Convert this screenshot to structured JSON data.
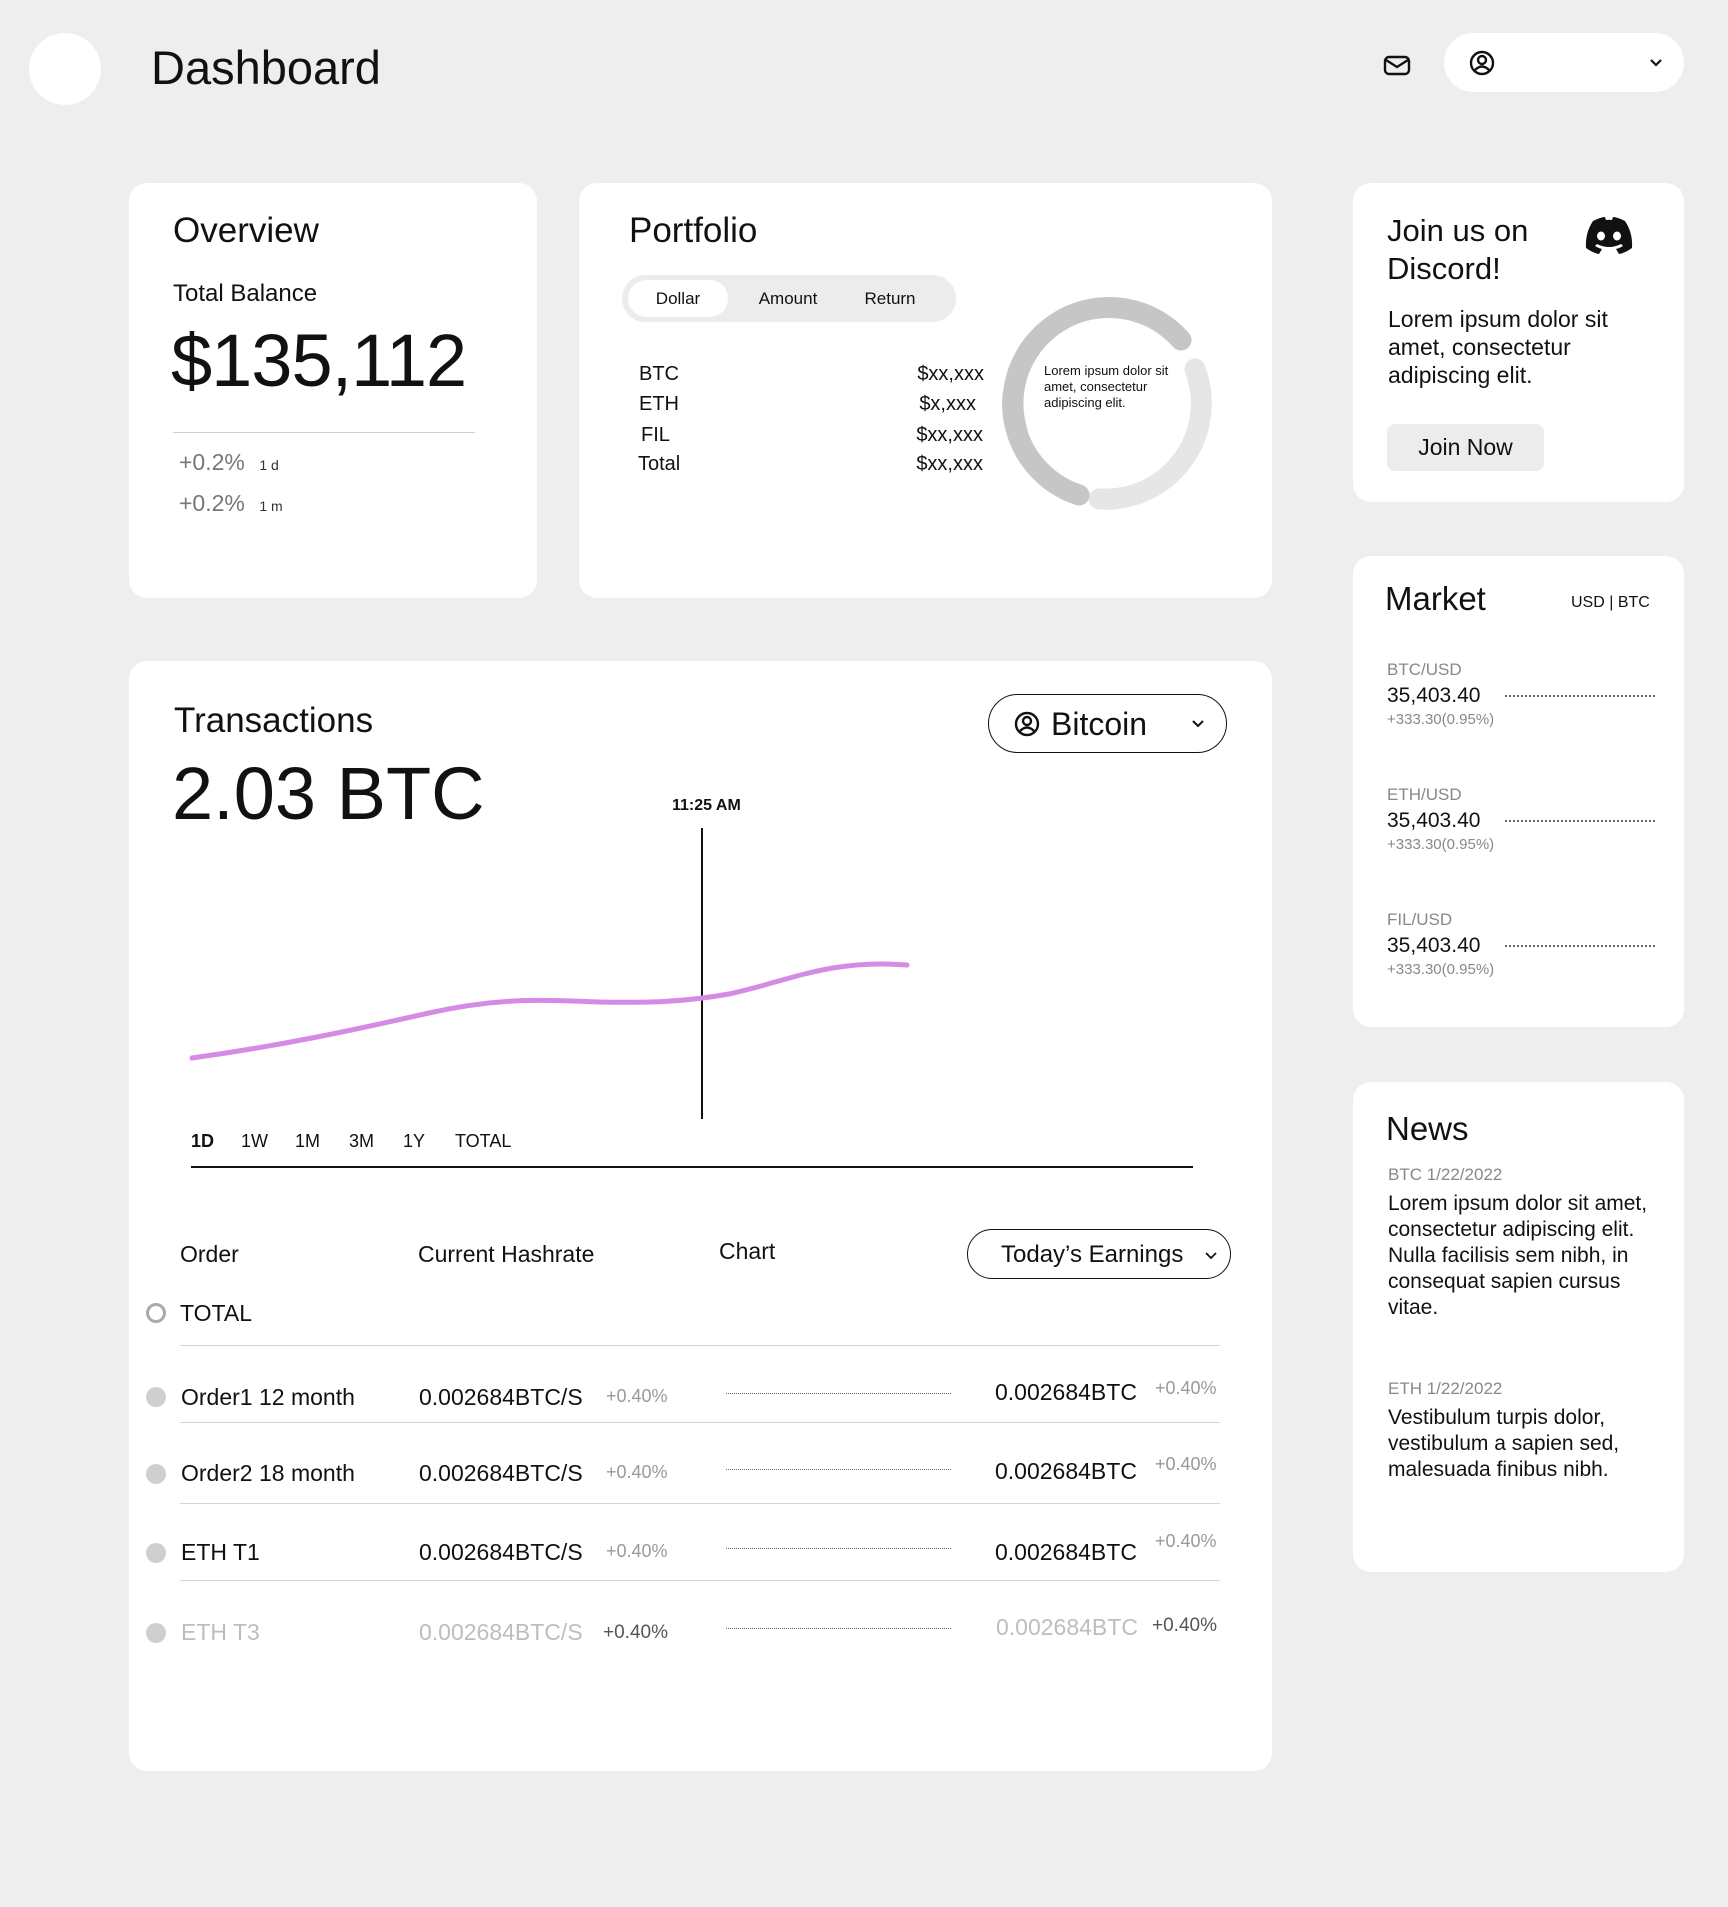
{
  "header": {
    "title": "Dashboard",
    "mail_icon": "mail-icon",
    "user_icon": "user-circle-icon",
    "dropdown_icon": "chevron-down-icon"
  },
  "overview": {
    "title": "Overview",
    "total_balance_label": "Total Balance",
    "total_balance": "$135,112",
    "changes": [
      {
        "value": "+0.2%",
        "period": "1 d"
      },
      {
        "value": "+0.2%",
        "period": "1 m"
      }
    ]
  },
  "portfolio": {
    "title": "Portfolio",
    "tabs": [
      {
        "label": "Dollar",
        "active": true
      },
      {
        "label": "Amount",
        "active": false
      },
      {
        "label": "Return",
        "active": false
      }
    ],
    "rows": [
      {
        "asset": "BTC",
        "value": "$xx,xxx"
      },
      {
        "asset": "ETH",
        "value": "$x,xxx"
      },
      {
        "asset": "FIL",
        "value": "$xx,xxx"
      },
      {
        "asset": "Total",
        "value": "$xx,xxx"
      }
    ],
    "donut_text": "Lorem ipsum dolor sit amet, consectetur adipiscing elit."
  },
  "discord": {
    "title": "Join us on Discord!",
    "body": "Lorem ipsum dolor sit amet, consectetur adipiscing elit.",
    "button": "Join Now",
    "icon": "discord-icon"
  },
  "market": {
    "title": "Market",
    "currency_toggle": "USD | BTC",
    "pairs": [
      {
        "pair": "BTC/USD",
        "price": "35,403.40",
        "change": "+333.30(0.95%)"
      },
      {
        "pair": "ETH/USD",
        "price": "35,403.40",
        "change": "+333.30(0.95%)"
      },
      {
        "pair": "FIL/USD",
        "price": "35,403.40",
        "change": "+333.30(0.95%)"
      }
    ]
  },
  "news": {
    "title": "News",
    "items": [
      {
        "meta": "BTC 1/22/2022",
        "text": "Lorem ipsum dolor sit amet, consectetur adipiscing elit. Nulla facilisis sem nibh, in consequat sapien cursus vitae."
      },
      {
        "meta": "ETH 1/22/2022",
        "text": "Vestibulum turpis dolor, vestibulum a sapien sed, malesuada finibus nibh."
      }
    ]
  },
  "transactions": {
    "title": "Transactions",
    "amount": "2.03 BTC",
    "coin_select": "Bitcoin",
    "cursor_time": "11:25 AM",
    "ranges": [
      {
        "label": "1D",
        "active": true
      },
      {
        "label": "1W",
        "active": false
      },
      {
        "label": "1M",
        "active": false
      },
      {
        "label": "3M",
        "active": false
      },
      {
        "label": "1Y",
        "active": false
      },
      {
        "label": "TOTAL",
        "active": false
      }
    ],
    "line_color": "#d48be6"
  },
  "orders": {
    "headers": {
      "order": "Order",
      "hashrate": "Current Hashrate",
      "chart": "Chart",
      "earnings_select": "Today’s Earnings"
    },
    "total_label": "TOTAL",
    "rows": [
      {
        "name": "Order1 12 month",
        "hashrate": "0.002684BTC/S",
        "hashrate_change": "+0.40%",
        "earnings": "0.002684BTC",
        "earnings_change": "+0.40%",
        "faded": false
      },
      {
        "name": "Order2 18 month",
        "hashrate": "0.002684BTC/S",
        "hashrate_change": "+0.40%",
        "earnings": "0.002684BTC",
        "earnings_change": "+0.40%",
        "faded": false
      },
      {
        "name": "ETH T1",
        "hashrate": "0.002684BTC/S",
        "hashrate_change": "+0.40%",
        "earnings": "0.002684BTC",
        "earnings_change": "+0.40%",
        "faded": false
      },
      {
        "name": "ETH T3",
        "hashrate": "0.002684BTC/S",
        "hashrate_change": "+0.40%",
        "earnings": "0.002684BTC",
        "earnings_change": "+0.40%",
        "faded": true
      }
    ]
  }
}
